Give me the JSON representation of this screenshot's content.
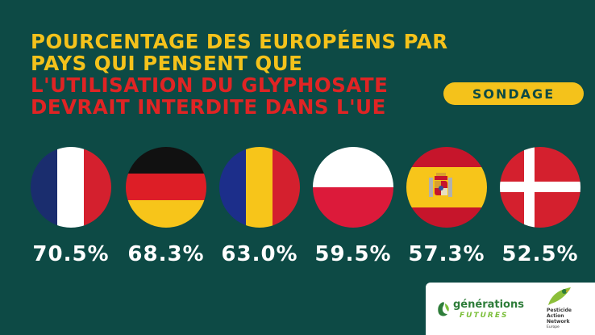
{
  "title": {
    "line1": "POURCENTAGE DES EUROPÉENS PAR",
    "line2": "PAYS QUI PENSENT QUE",
    "line3": "L'UTILISATION DU GLYPHOSATE",
    "line4": "DEVRAIT INTERDITE DANS L'UE",
    "highlight_color": "#e02424",
    "accent_color": "#f4c21b"
  },
  "badge": {
    "label": "SONDAGE"
  },
  "countries": [
    {
      "flag": "france-flag",
      "value": "70.5%"
    },
    {
      "flag": "germany-flag",
      "value": "68.3%"
    },
    {
      "flag": "romania-flag",
      "value": "63.0%"
    },
    {
      "flag": "poland-flag",
      "value": "59.5%"
    },
    {
      "flag": "spain-flag",
      "value": "57.3%"
    },
    {
      "flag": "denmark-flag",
      "value": "52.5%"
    }
  ],
  "logos": {
    "generations_futures": {
      "line1": "générations",
      "line2": "FUTURES"
    },
    "pan": {
      "line1": "Pesticide",
      "line2": "Action",
      "line3": "Network",
      "line4": "Europe"
    }
  },
  "colors": {
    "background": "#0d4a45",
    "text": "#ffffff"
  }
}
